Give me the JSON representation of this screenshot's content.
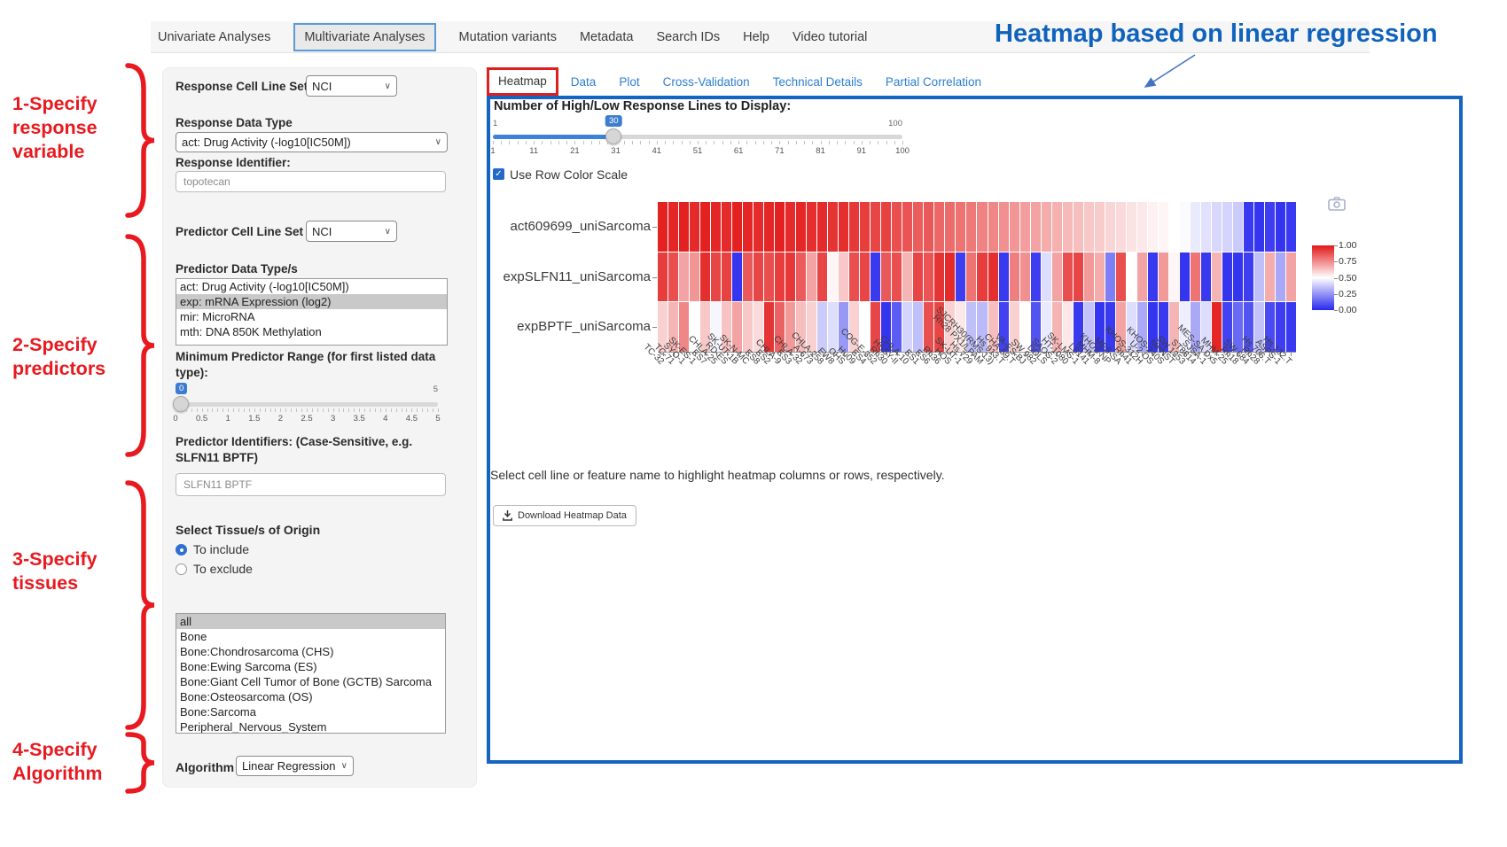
{
  "nav": {
    "items": [
      {
        "label": "Univariate Analyses",
        "selected": false
      },
      {
        "label": "Multivariate Analyses",
        "selected": true
      },
      {
        "label": "Mutation variants",
        "selected": false
      },
      {
        "label": "Metadata",
        "selected": false
      },
      {
        "label": "Search IDs",
        "selected": false
      },
      {
        "label": "Help",
        "selected": false
      },
      {
        "label": "Video tutorial",
        "selected": false
      }
    ]
  },
  "annotations": {
    "heading": "Heatmap based on linear regression",
    "steps": [
      "1-Specify\nresponse\nvariable",
      "2-Specify\npredictors",
      "3-Specify\ntissues",
      "4-Specify\n Algorithm"
    ],
    "annotation_red": "#e8191f",
    "heading_blue": "#1063bd"
  },
  "sidebar": {
    "response": {
      "cell_line_set_label": "Response Cell Line Set",
      "cell_line_set_value": "NCI",
      "data_type_label": "Response Data Type",
      "data_type_value": "act: Drug Activity (-log10[IC50M])",
      "identifier_label": "Response Identifier:",
      "identifier_value": "topotecan"
    },
    "predictor": {
      "cell_line_set_label": "Predictor Cell Line Set",
      "cell_line_set_value": "NCI",
      "data_types_label": "Predictor Data Type/s",
      "data_types": [
        {
          "label": "act: Drug Activity (-log10[IC50M])",
          "selected": false
        },
        {
          "label": "exp: mRNA Expression (log2)",
          "selected": true
        },
        {
          "label": "mir: MicroRNA",
          "selected": false
        },
        {
          "label": "mth: DNA 850K Methylation",
          "selected": false
        }
      ],
      "min_range_label": "Minimum Predictor Range (for first listed data type):",
      "slider": {
        "value": "0",
        "max_label": "5",
        "ticks": [
          "0",
          "0.5",
          "1",
          "1.5",
          "2",
          "2.5",
          "3",
          "3.5",
          "4",
          "4.5",
          "5"
        ],
        "fill_pct": 0
      },
      "identifiers_label": "Predictor Identifiers: (Case-Sensitive, e.g. SLFN11 BPTF)",
      "identifiers_value": "SLFN11 BPTF"
    },
    "tissue": {
      "label": "Select Tissue/s of Origin",
      "include_label": "To include",
      "exclude_label": "To exclude",
      "options": [
        {
          "label": "all",
          "selected": true
        },
        {
          "label": "Bone",
          "selected": false
        },
        {
          "label": "Bone:Chondrosarcoma (CHS)",
          "selected": false
        },
        {
          "label": "Bone:Ewing Sarcoma (ES)",
          "selected": false
        },
        {
          "label": "Bone:Giant Cell Tumor of Bone (GCTB) Sarcoma",
          "selected": false
        },
        {
          "label": "Bone:Osteosarcoma (OS)",
          "selected": false
        },
        {
          "label": "Bone:Sarcoma",
          "selected": false
        },
        {
          "label": "Peripheral_Nervous_System",
          "selected": false
        }
      ]
    },
    "algorithm": {
      "label": "Algorithm",
      "value": "Linear Regression"
    }
  },
  "main": {
    "tabs": [
      {
        "label": "Heatmap",
        "active": true,
        "boxed": true
      },
      {
        "label": "Data",
        "active": false,
        "boxed": false
      },
      {
        "label": "Plot",
        "active": false,
        "boxed": false
      },
      {
        "label": "Cross-Validation",
        "active": false,
        "boxed": false
      },
      {
        "label": "Technical Details",
        "active": false,
        "boxed": false
      },
      {
        "label": "Partial Correlation",
        "active": false,
        "boxed": false
      }
    ],
    "slider": {
      "title": "Number of High/Low Response Lines to Display:",
      "min_label": "1",
      "max_label": "100",
      "value": "30",
      "fill_pct": 29.5,
      "ticks": [
        "1",
        "11",
        "21",
        "31",
        "41",
        "51",
        "61",
        "71",
        "81",
        "91",
        "100"
      ]
    },
    "row_color_checkbox_label": "Use Row Color Scale",
    "checkbox_checked": true,
    "hint": "Select cell line or feature name to highlight heatmap columns or rows, respectively.",
    "download_label": "Download Heatmap Data",
    "panel_border_blue": "#1565c0",
    "tab_link_blue": "#2e7fd0"
  },
  "icons": {
    "select_chevron": "∨",
    "check_glyph": "✓"
  },
  "chart_data": {
    "type": "heatmap",
    "title": "",
    "rows": [
      "act609699_uniSarcoma",
      "expSLFN11_uniSarcoma",
      "expBPTF_uniSarcoma"
    ],
    "columns": [
      "TC-32",
      "TC-71",
      "SYO-1",
      "SK-ES-1",
      "ES7",
      "CHLA-25",
      "RD-ES",
      "SK-UT-1B",
      "SK-N-MC",
      "ES8",
      "ES2",
      "CHLA-9",
      "ES3",
      "CHLA-32",
      "A-673",
      "CHLA-258",
      "EW8",
      "OHS",
      "Hu09",
      "ES4",
      "COG-E-352",
      "Rh30",
      "HSSY-II",
      "CHLA-10",
      "ES1",
      "ES6",
      "Rh36",
      "HOS",
      "SK-UT-1",
      "Hs 729",
      "Rh28 PX1/LPAM",
      "SJCRH30(RMS 13)",
      "Hs 913.T",
      "CHA-59.T",
      "VA-ES-BJ",
      "SW 982",
      "DDLS",
      "SAOS-2",
      "HT-1080",
      "SK-LMS-1",
      "LS141",
      "MHM-8",
      "KHOS NP",
      "MES-SA",
      "Rh41",
      "KHOS-312H",
      "U-2 OS",
      "KHOS-240S",
      "MPNST",
      "SW 1353",
      "ST8814",
      "SJSA-1",
      "MES-SA Dx5",
      "MHM-25",
      "Rh18",
      "SW 684",
      "Rh28",
      "Hs 706.T",
      "ASPS-1",
      "Hs 132.T"
    ],
    "values": [
      [
        0.98,
        0.97,
        0.98,
        0.96,
        0.98,
        0.97,
        0.96,
        0.98,
        0.97,
        0.96,
        0.97,
        0.98,
        0.96,
        0.97,
        0.95,
        0.96,
        0.94,
        0.95,
        0.93,
        0.92,
        0.9,
        0.91,
        0.88,
        0.87,
        0.85,
        0.86,
        0.83,
        0.82,
        0.8,
        0.79,
        0.77,
        0.76,
        0.74,
        0.73,
        0.71,
        0.7,
        0.68,
        0.67,
        0.65,
        0.64,
        0.62,
        0.61,
        0.59,
        0.58,
        0.56,
        0.55,
        0.53,
        0.52,
        0.5,
        0.49,
        0.45,
        0.43,
        0.41,
        0.4,
        0.38,
        0.04,
        0.03,
        0.05,
        0.03,
        0.04
      ],
      [
        0.92,
        0.88,
        0.7,
        0.73,
        0.95,
        0.9,
        0.91,
        0.03,
        0.86,
        0.9,
        0.88,
        0.92,
        0.93,
        0.85,
        0.7,
        0.9,
        0.52,
        0.62,
        0.88,
        0.9,
        0.04,
        0.86,
        0.88,
        0.66,
        0.9,
        0.87,
        0.94,
        0.96,
        0.05,
        0.8,
        0.92,
        0.95,
        0.04,
        0.78,
        0.74,
        0.05,
        0.42,
        0.7,
        0.88,
        0.9,
        0.72,
        0.68,
        0.2,
        0.88,
        0.5,
        0.7,
        0.04,
        0.72,
        0.52,
        0.03,
        0.8,
        0.04,
        0.66,
        0.03,
        0.03,
        0.05,
        0.35,
        0.68,
        0.3,
        0.7
      ],
      [
        0.6,
        0.66,
        0.76,
        0.5,
        0.62,
        0.48,
        0.63,
        0.7,
        0.62,
        0.58,
        0.94,
        0.84,
        0.72,
        0.64,
        0.6,
        0.38,
        0.42,
        0.26,
        0.6,
        0.5,
        0.9,
        0.03,
        0.12,
        0.4,
        0.35,
        0.88,
        0.9,
        0.6,
        0.55,
        0.35,
        0.34,
        0.64,
        0.06,
        0.6,
        0.5,
        0.1,
        0.45,
        0.66,
        0.55,
        0.04,
        0.36,
        0.03,
        0.04,
        0.7,
        0.42,
        0.3,
        0.03,
        0.04,
        0.66,
        0.46,
        0.3,
        0.42,
        0.97,
        0.06,
        0.15,
        0.1,
        0.36,
        0.08,
        0.05,
        0.04
      ]
    ],
    "colorscale": {
      "low_color": "#2828ee",
      "mid_color": "#ffffff",
      "high_color": "#e21818",
      "domain": [
        0,
        1
      ]
    },
    "legend_ticks": [
      "1.00",
      "0.75",
      "0.50",
      "0.25",
      "0.00"
    ],
    "legend_position": "right",
    "xlabel": "",
    "ylabel": ""
  }
}
